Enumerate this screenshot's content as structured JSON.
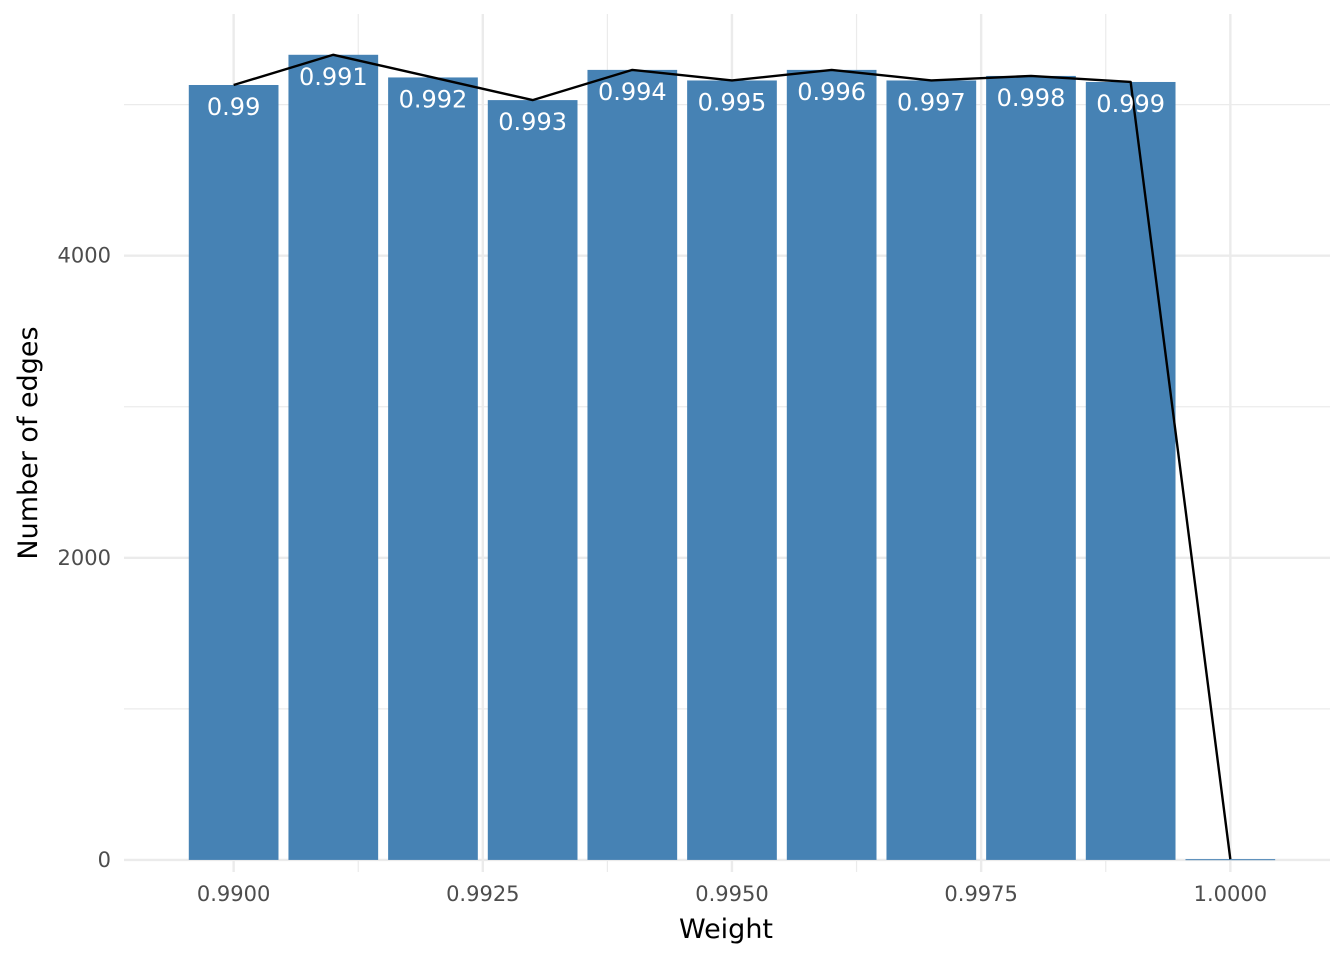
{
  "chart_data": {
    "type": "bar",
    "xlabel": "Weight",
    "ylabel": "Number of edges",
    "xlim": [
      0.9889,
      1.001
    ],
    "ylim": [
      -80,
      5600
    ],
    "x_ticks": [
      {
        "value": 0.99,
        "label": "0.9900"
      },
      {
        "value": 0.9925,
        "label": "0.9925"
      },
      {
        "value": 0.995,
        "label": "0.9950"
      },
      {
        "value": 0.9975,
        "label": "0.9975"
      },
      {
        "value": 1.0,
        "label": "1.0000"
      }
    ],
    "x_minor_ticks": [
      0.99125,
      0.99375,
      0.99625,
      0.99875
    ],
    "y_ticks": [
      {
        "value": 0,
        "label": "0"
      },
      {
        "value": 2000,
        "label": "2000"
      },
      {
        "value": 4000,
        "label": "4000"
      }
    ],
    "y_minor_ticks": [
      1000,
      3000,
      5000
    ],
    "grid": true,
    "bar_color": "#4682B4",
    "line_color": "#000000",
    "bar_width": 0.0009,
    "bars": [
      {
        "x": 0.99,
        "value": 5130,
        "label": "0.99"
      },
      {
        "x": 0.991,
        "value": 5330,
        "label": "0.991"
      },
      {
        "x": 0.992,
        "value": 5180,
        "label": "0.992"
      },
      {
        "x": 0.993,
        "value": 5030,
        "label": "0.993"
      },
      {
        "x": 0.994,
        "value": 5230,
        "label": "0.994"
      },
      {
        "x": 0.995,
        "value": 5160,
        "label": "0.995"
      },
      {
        "x": 0.996,
        "value": 5230,
        "label": "0.996"
      },
      {
        "x": 0.997,
        "value": 5160,
        "label": "0.997"
      },
      {
        "x": 0.998,
        "value": 5190,
        "label": "0.998"
      },
      {
        "x": 0.999,
        "value": 5150,
        "label": "0.999"
      },
      {
        "x": 1.0,
        "value": 5,
        "label": ""
      }
    ]
  }
}
